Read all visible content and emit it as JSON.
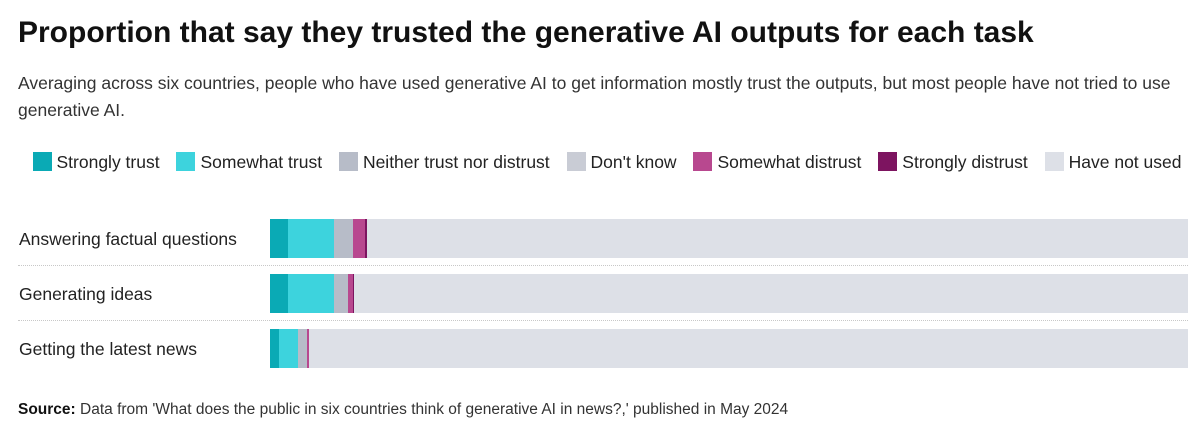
{
  "title": "Proportion that say they trusted the generative AI outputs for each task",
  "subtitle": "Averaging across six countries, people who have used generative AI to get information mostly trust the outputs, but most people have not tried to use generative AI.",
  "source_label": "Source:",
  "source_text": "Data from 'What does the public in six countries think of generative AI in news?,' published in May 2024",
  "chart_data": {
    "type": "bar",
    "orientation": "horizontal",
    "stacked": true,
    "normalized_to": 100,
    "categories": [
      "Answering factual questions",
      "Generating ideas",
      "Getting the latest news"
    ],
    "series": [
      {
        "name": "Strongly trust",
        "color": "#0aaab5",
        "values": [
          2,
          2,
          1
        ]
      },
      {
        "name": "Somewhat trust",
        "color": "#3dd3dd",
        "values": [
          5,
          5,
          2
        ]
      },
      {
        "name": "Neither trust nor distrust",
        "color": "#b7bcc8",
        "values": [
          2,
          1.5,
          1
        ]
      },
      {
        "name": "Don't know",
        "color": "#c9ccd5",
        "values": [
          0,
          0,
          0
        ]
      },
      {
        "name": "Somewhat distrust",
        "color": "#b8488f",
        "values": [
          1.3,
          0.5,
          0.2
        ]
      },
      {
        "name": "Strongly distrust",
        "color": "#7d1460",
        "values": [
          0.3,
          0.1,
          0.1
        ]
      },
      {
        "name": "Have not used",
        "color": "#dde0e7",
        "values": [
          89.4,
          90.9,
          95.7
        ]
      }
    ],
    "legend_position": "top",
    "grid": false
  }
}
